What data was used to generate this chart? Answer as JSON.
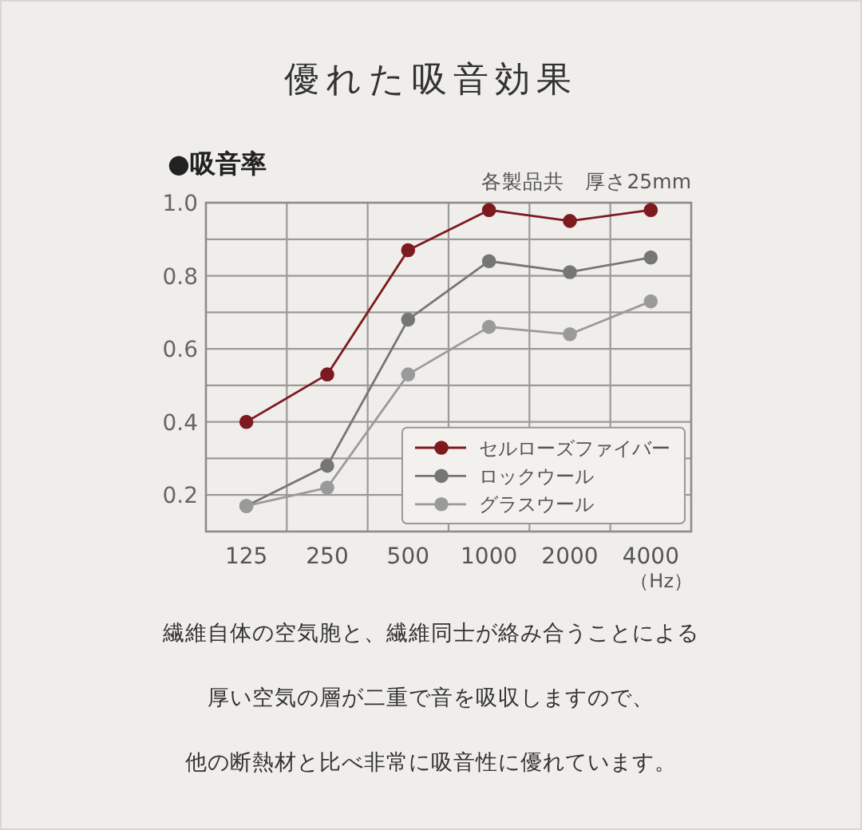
{
  "chart_data": {
    "type": "line",
    "title": "優れた吸音効果",
    "ylabel": "●吸音率",
    "subtitle": "各製品共　厚さ25mm",
    "xlabel": "（Hz）",
    "categories": [
      "125",
      "250",
      "500",
      "1000",
      "2000",
      "4000"
    ],
    "series": [
      {
        "name": "セルローズファイバー",
        "color": "#7d1a20",
        "values": [
          0.4,
          0.53,
          0.87,
          0.98,
          0.95,
          0.98
        ]
      },
      {
        "name": "ロックウール",
        "color": "#767676",
        "values": [
          0.17,
          0.28,
          0.68,
          0.84,
          0.81,
          0.85
        ]
      },
      {
        "name": "グラスウール",
        "color": "#9a9a9a",
        "values": [
          0.17,
          0.22,
          0.53,
          0.66,
          0.64,
          0.73
        ]
      }
    ],
    "ylim": [
      0.1,
      1.0
    ],
    "yticks": [
      0.2,
      {
        "value": 0.3,
        "label": null
      },
      0.4,
      {
        "value": 0.5,
        "label": null
      },
      0.6,
      {
        "value": 0.7,
        "label": null
      },
      0.8,
      {
        "value": 0.9,
        "label": null
      },
      {
        "value": 1,
        "label": "1.0"
      }
    ],
    "grid": true,
    "legend": "bottom right",
    "marker": "circle",
    "line_style": "solid",
    "annotations": [
      "繊維自体の空気胞と、繊維同士が絡み合うことによる",
      "厚い空気の層が二重で音を吸収しますので、",
      "他の断熱材と比べ非常に吸音性に優れています。"
    ]
  }
}
